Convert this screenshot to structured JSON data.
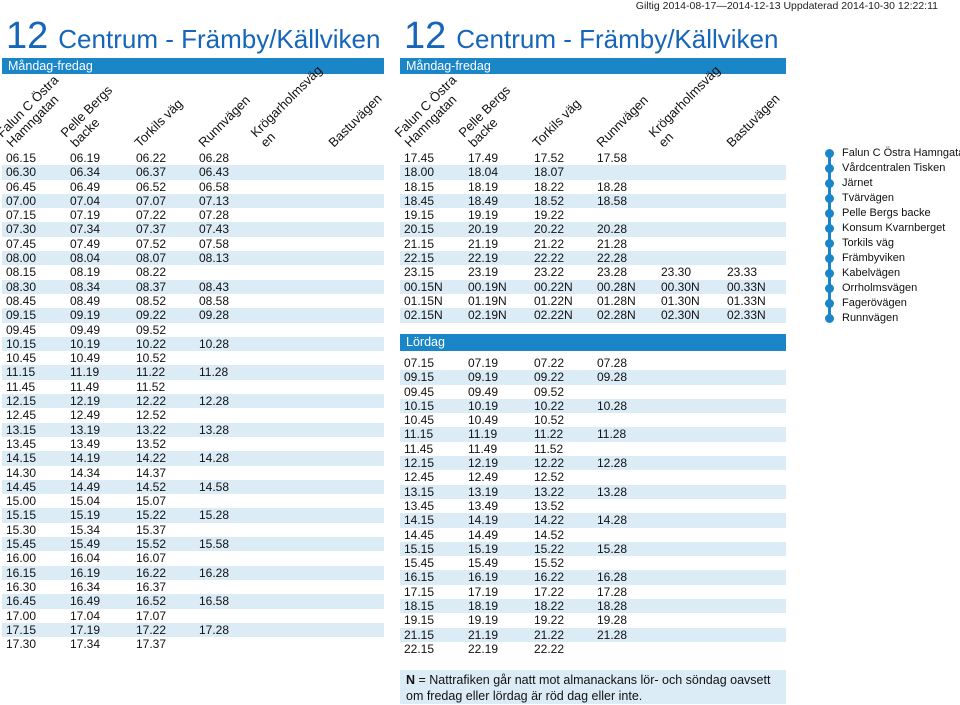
{
  "validity": "Giltig 2014-08-17—2014-12-13 Uppdaterad 2014-10-30 12:22:11",
  "line_number": "12",
  "line_name": "Centrum - Främby/Källviken",
  "stops": [
    "Falun C Östra\nHamngatan",
    "Pelle Bergs\nbacke",
    "Torkils väg",
    "Runnvägen",
    "Krögarholmsväg\nen",
    "Bastuvägen"
  ],
  "left": {
    "section": "Måndag-fredag",
    "rows": [
      [
        "06.15",
        "06.19",
        "06.22",
        "06.28",
        "",
        ""
      ],
      [
        "06.30",
        "06.34",
        "06.37",
        "06.43",
        "",
        ""
      ],
      [
        "06.45",
        "06.49",
        "06.52",
        "06.58",
        "",
        ""
      ],
      [
        "07.00",
        "07.04",
        "07.07",
        "07.13",
        "",
        ""
      ],
      [
        "07.15",
        "07.19",
        "07.22",
        "07.28",
        "",
        ""
      ],
      [
        "07.30",
        "07.34",
        "07.37",
        "07.43",
        "",
        ""
      ],
      [
        "07.45",
        "07.49",
        "07.52",
        "07.58",
        "",
        ""
      ],
      [
        "08.00",
        "08.04",
        "08.07",
        "08.13",
        "",
        ""
      ],
      [
        "08.15",
        "08.19",
        "08.22",
        "",
        "",
        ""
      ],
      [
        "08.30",
        "08.34",
        "08.37",
        "08.43",
        "",
        ""
      ],
      [
        "08.45",
        "08.49",
        "08.52",
        "08.58",
        "",
        ""
      ],
      [
        "09.15",
        "09.19",
        "09.22",
        "09.28",
        "",
        ""
      ],
      [
        "09.45",
        "09.49",
        "09.52",
        "",
        "",
        ""
      ],
      [
        "10.15",
        "10.19",
        "10.22",
        "10.28",
        "",
        ""
      ],
      [
        "10.45",
        "10.49",
        "10.52",
        "",
        "",
        ""
      ],
      [
        "11.15",
        "11.19",
        "11.22",
        "11.28",
        "",
        ""
      ],
      [
        "11.45",
        "11.49",
        "11.52",
        "",
        "",
        ""
      ],
      [
        "12.15",
        "12.19",
        "12.22",
        "12.28",
        "",
        ""
      ],
      [
        "12.45",
        "12.49",
        "12.52",
        "",
        "",
        ""
      ],
      [
        "13.15",
        "13.19",
        "13.22",
        "13.28",
        "",
        ""
      ],
      [
        "13.45",
        "13.49",
        "13.52",
        "",
        "",
        ""
      ],
      [
        "14.15",
        "14.19",
        "14.22",
        "14.28",
        "",
        ""
      ],
      [
        "14.30",
        "14.34",
        "14.37",
        "",
        "",
        ""
      ],
      [
        "14.45",
        "14.49",
        "14.52",
        "14.58",
        "",
        ""
      ],
      [
        "15.00",
        "15.04",
        "15.07",
        "",
        "",
        ""
      ],
      [
        "15.15",
        "15.19",
        "15.22",
        "15.28",
        "",
        ""
      ],
      [
        "15.30",
        "15.34",
        "15.37",
        "",
        "",
        ""
      ],
      [
        "15.45",
        "15.49",
        "15.52",
        "15.58",
        "",
        ""
      ],
      [
        "16.00",
        "16.04",
        "16.07",
        "",
        "",
        ""
      ],
      [
        "16.15",
        "16.19",
        "16.22",
        "16.28",
        "",
        ""
      ],
      [
        "16.30",
        "16.34",
        "16.37",
        "",
        "",
        ""
      ],
      [
        "16.45",
        "16.49",
        "16.52",
        "16.58",
        "",
        ""
      ],
      [
        "17.00",
        "17.04",
        "17.07",
        "",
        "",
        ""
      ],
      [
        "17.15",
        "17.19",
        "17.22",
        "17.28",
        "",
        ""
      ],
      [
        "17.30",
        "17.34",
        "17.37",
        "",
        "",
        ""
      ]
    ]
  },
  "right": {
    "section": "Måndag-fredag",
    "rows": [
      [
        "17.45",
        "17.49",
        "17.52",
        "17.58",
        "",
        ""
      ],
      [
        "18.00",
        "18.04",
        "18.07",
        "",
        "",
        ""
      ],
      [
        "18.15",
        "18.19",
        "18.22",
        "18.28",
        "",
        ""
      ],
      [
        "18.45",
        "18.49",
        "18.52",
        "18.58",
        "",
        ""
      ],
      [
        "19.15",
        "19.19",
        "19.22",
        "",
        "",
        ""
      ],
      [
        "20.15",
        "20.19",
        "20.22",
        "20.28",
        "",
        ""
      ],
      [
        "21.15",
        "21.19",
        "21.22",
        "21.28",
        "",
        ""
      ],
      [
        "22.15",
        "22.19",
        "22.22",
        "22.28",
        "",
        ""
      ],
      [
        "23.15",
        "23.19",
        "23.22",
        "23.28",
        "23.30",
        "23.33"
      ],
      [
        "00.15N",
        "00.19N",
        "00.22N",
        "00.28N",
        "00.30N",
        "00.33N"
      ],
      [
        "01.15N",
        "01.19N",
        "01.22N",
        "01.28N",
        "01.30N",
        "01.33N"
      ],
      [
        "02.15N",
        "02.19N",
        "02.22N",
        "02.28N",
        "02.30N",
        "02.33N"
      ]
    ],
    "section2": "Lördag",
    "rows2": [
      [
        "07.15",
        "07.19",
        "07.22",
        "07.28",
        "",
        ""
      ],
      [
        "09.15",
        "09.19",
        "09.22",
        "09.28",
        "",
        ""
      ],
      [
        "09.45",
        "09.49",
        "09.52",
        "",
        "",
        ""
      ],
      [
        "10.15",
        "10.19",
        "10.22",
        "10.28",
        "",
        ""
      ],
      [
        "10.45",
        "10.49",
        "10.52",
        "",
        "",
        ""
      ],
      [
        "11.15",
        "11.19",
        "11.22",
        "11.28",
        "",
        ""
      ],
      [
        "11.45",
        "11.49",
        "11.52",
        "",
        "",
        ""
      ],
      [
        "12.15",
        "12.19",
        "12.22",
        "12.28",
        "",
        ""
      ],
      [
        "12.45",
        "12.49",
        "12.52",
        "",
        "",
        ""
      ],
      [
        "13.15",
        "13.19",
        "13.22",
        "13.28",
        "",
        ""
      ],
      [
        "13.45",
        "13.49",
        "13.52",
        "",
        "",
        ""
      ],
      [
        "14.15",
        "14.19",
        "14.22",
        "14.28",
        "",
        ""
      ],
      [
        "14.45",
        "14.49",
        "14.52",
        "",
        "",
        ""
      ],
      [
        "15.15",
        "15.19",
        "15.22",
        "15.28",
        "",
        ""
      ],
      [
        "15.45",
        "15.49",
        "15.52",
        "",
        "",
        ""
      ],
      [
        "16.15",
        "16.19",
        "16.22",
        "16.28",
        "",
        ""
      ],
      [
        "17.15",
        "17.19",
        "17.22",
        "17.28",
        "",
        ""
      ],
      [
        "18.15",
        "18.19",
        "18.22",
        "18.28",
        "",
        ""
      ],
      [
        "19.15",
        "19.19",
        "19.22",
        "19.28",
        "",
        ""
      ],
      [
        "21.15",
        "21.19",
        "21.22",
        "21.28",
        "",
        ""
      ],
      [
        "22.15",
        "22.19",
        "22.22",
        "",
        "",
        ""
      ]
    ]
  },
  "legend": [
    "Falun C Östra Hamngatan",
    "Vårdcentralen Tisken",
    "Järnet",
    "Tvärvägen",
    "Pelle Bergs backe",
    "Konsum Kvarnberget",
    "Torkils väg",
    "Främbyviken",
    "Kabelvägen",
    "Orrholmsvägen",
    "Fagerövägen",
    "Runnvägen"
  ],
  "note_n": "N",
  "note_text": " = Nattrafiken går natt mot almanackans lör- och söndag oavsett om fredag eller lördag är röd dag eller inte.",
  "colors": {
    "accent": "#1a86c8",
    "title": "#1565b8",
    "row_shade": "#dcecf7"
  }
}
